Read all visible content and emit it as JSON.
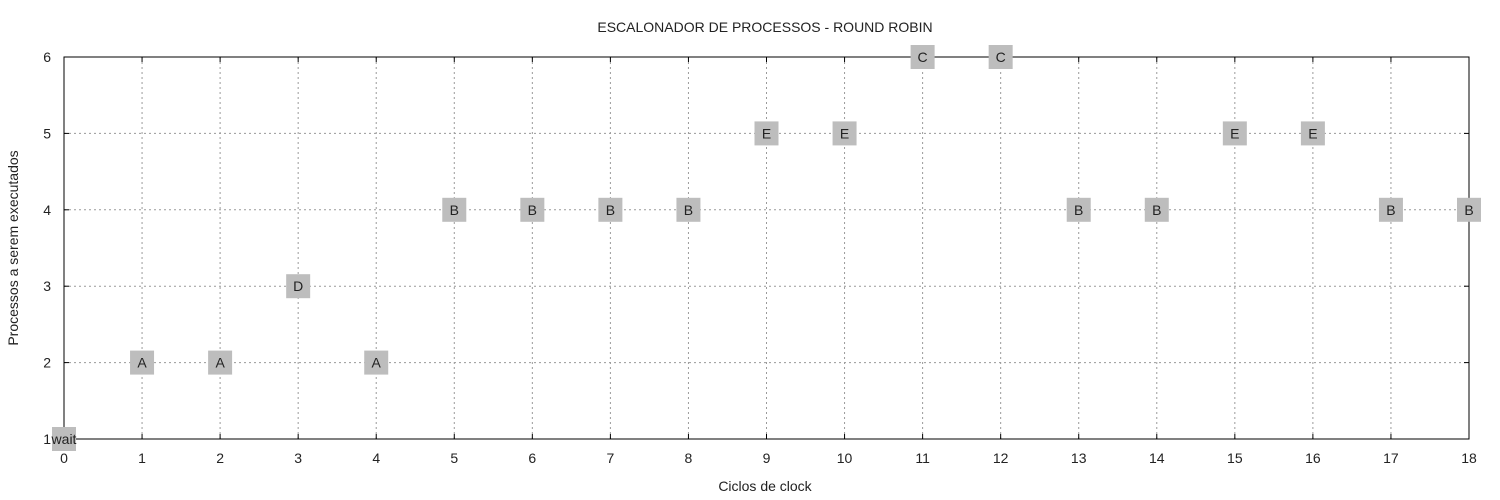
{
  "chart_data": {
    "type": "scatter",
    "title": "ESCALONADOR DE PROCESSOS - ROUND ROBIN",
    "xlabel": "Ciclos de clock",
    "ylabel": "Processos a serem executados",
    "xlim": [
      0,
      18
    ],
    "ylim": [
      1,
      6
    ],
    "x_ticks": [
      "0",
      "1",
      "2",
      "3",
      "4",
      "5",
      "6",
      "7",
      "8",
      "9",
      "10",
      "11",
      "12",
      "13",
      "14",
      "15",
      "16",
      "17",
      "18"
    ],
    "y_ticks": [
      "1",
      "2",
      "3",
      "4",
      "5",
      "6"
    ],
    "grid": true,
    "marker_color": "#bdbdbd",
    "points": [
      {
        "x": 0,
        "y": 1,
        "label": "wait"
      },
      {
        "x": 1,
        "y": 2,
        "label": "A"
      },
      {
        "x": 2,
        "y": 2,
        "label": "A"
      },
      {
        "x": 3,
        "y": 3,
        "label": "D"
      },
      {
        "x": 4,
        "y": 2,
        "label": "A"
      },
      {
        "x": 5,
        "y": 4,
        "label": "B"
      },
      {
        "x": 6,
        "y": 4,
        "label": "B"
      },
      {
        "x": 7,
        "y": 4,
        "label": "B"
      },
      {
        "x": 8,
        "y": 4,
        "label": "B"
      },
      {
        "x": 9,
        "y": 5,
        "label": "E"
      },
      {
        "x": 10,
        "y": 5,
        "label": "E"
      },
      {
        "x": 11,
        "y": 6,
        "label": "C"
      },
      {
        "x": 12,
        "y": 6,
        "label": "C"
      },
      {
        "x": 13,
        "y": 4,
        "label": "B"
      },
      {
        "x": 14,
        "y": 4,
        "label": "B"
      },
      {
        "x": 15,
        "y": 5,
        "label": "E"
      },
      {
        "x": 16,
        "y": 5,
        "label": "E"
      },
      {
        "x": 17,
        "y": 4,
        "label": "B"
      },
      {
        "x": 18,
        "y": 4,
        "label": "B"
      }
    ]
  }
}
